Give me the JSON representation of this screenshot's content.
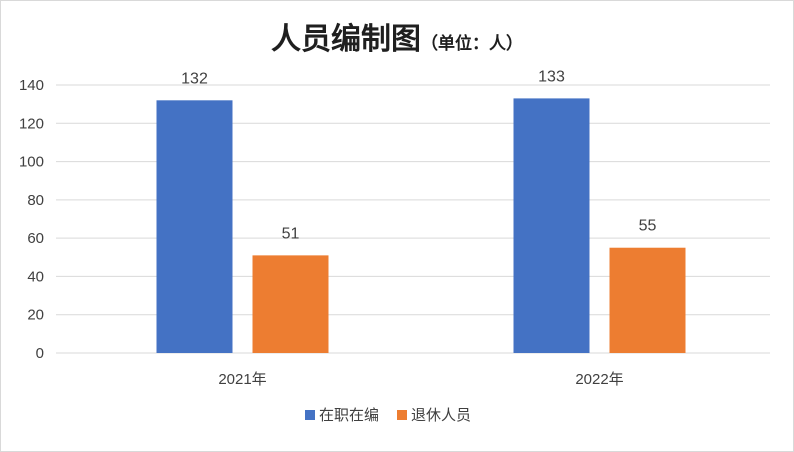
{
  "chart_data": {
    "type": "bar",
    "title": "人员编制图",
    "subtitle": "（单位：人）",
    "categories": [
      "2021年",
      "2022年"
    ],
    "series": [
      {
        "name": "在职在编",
        "values": [
          132,
          133
        ],
        "color": "#4472c4"
      },
      {
        "name": "退休人员",
        "values": [
          51,
          55
        ],
        "color": "#ed7d31"
      }
    ],
    "ylim": [
      0,
      140
    ],
    "yticks": [
      0,
      20,
      40,
      60,
      80,
      100,
      120,
      140
    ],
    "grid": true,
    "data_labels": true,
    "legend": "bottom",
    "colors": {
      "gridline": "#d9d9d9",
      "axis": "#d9d9d9"
    }
  }
}
